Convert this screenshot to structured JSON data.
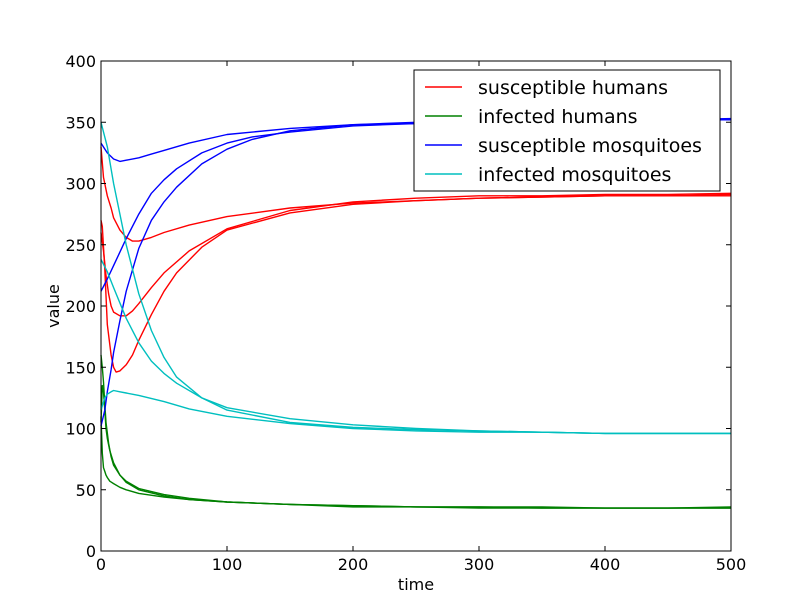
{
  "chart_data": {
    "type": "line",
    "title": "",
    "xlabel": "time",
    "ylabel": "value",
    "xlim": [
      0,
      500
    ],
    "ylim": [
      0,
      400
    ],
    "x_ticks": [
      0,
      100,
      200,
      300,
      400,
      500
    ],
    "y_ticks": [
      0,
      50,
      100,
      150,
      200,
      250,
      300,
      350,
      400
    ],
    "grid": false,
    "legend_position": "top-right",
    "legend": [
      {
        "label": "susceptible humans",
        "color": "#ff0000"
      },
      {
        "label": "infected humans",
        "color": "#008000"
      },
      {
        "label": "susceptible mosquitoes",
        "color": "#0000ff"
      },
      {
        "label": "infected mosquitoes",
        "color": "#00bfbf"
      }
    ],
    "series": [
      {
        "group": "susceptible humans",
        "color": "#ff0000",
        "x": [
          0,
          2,
          5,
          8,
          10,
          15,
          20,
          25,
          30,
          40,
          50,
          70,
          100,
          150,
          200,
          250,
          300,
          350,
          400,
          450,
          500
        ],
        "y": [
          330,
          305,
          290,
          280,
          272,
          262,
          256,
          253,
          253,
          256,
          260,
          266,
          273,
          280,
          284,
          286,
          288,
          289,
          290,
          290,
          290
        ]
      },
      {
        "group": "susceptible humans",
        "color": "#ff0000",
        "x": [
          0,
          2,
          4,
          6,
          8,
          10,
          15,
          20,
          25,
          30,
          40,
          50,
          70,
          100,
          150,
          200,
          250,
          300,
          350,
          400,
          450,
          500
        ],
        "y": [
          260,
          245,
          225,
          210,
          200,
          195,
          192,
          192,
          196,
          202,
          215,
          227,
          245,
          263,
          278,
          285,
          288,
          290,
          290,
          291,
          291,
          292
        ]
      },
      {
        "group": "susceptible humans",
        "color": "#ff0000",
        "x": [
          0,
          1,
          3,
          5,
          8,
          10,
          12,
          15,
          20,
          25,
          30,
          40,
          50,
          60,
          80,
          100,
          150,
          200,
          250,
          300,
          350,
          400,
          450,
          500
        ],
        "y": [
          270,
          265,
          230,
          185,
          160,
          150,
          146,
          147,
          152,
          160,
          172,
          193,
          212,
          227,
          248,
          262,
          276,
          283,
          286,
          288,
          289,
          290,
          290,
          291
        ]
      },
      {
        "group": "infected humans",
        "color": "#008000",
        "x": [
          0,
          1,
          2,
          3,
          4,
          5,
          7,
          10,
          15,
          20,
          30,
          50,
          70,
          100,
          150,
          200,
          250,
          300,
          350,
          400,
          450,
          500
        ],
        "y": [
          105,
          135,
          130,
          115,
          100,
          92,
          82,
          72,
          62,
          56,
          50,
          45,
          42,
          40,
          38,
          37,
          36,
          36,
          36,
          35,
          35,
          35
        ]
      },
      {
        "group": "infected humans",
        "color": "#008000",
        "x": [
          0,
          1,
          2,
          3,
          4,
          6,
          8,
          10,
          15,
          20,
          30,
          50,
          70,
          100,
          150,
          200,
          250,
          300,
          350,
          400,
          450,
          500
        ],
        "y": [
          160,
          150,
          138,
          120,
          105,
          88,
          77,
          70,
          62,
          57,
          51,
          46,
          43,
          40,
          38,
          37,
          36,
          35,
          35,
          35,
          35,
          35
        ]
      },
      {
        "group": "infected humans",
        "color": "#008000",
        "x": [
          0,
          1,
          2,
          3,
          4,
          5,
          7,
          10,
          15,
          20,
          30,
          50,
          70,
          100,
          150,
          200,
          250,
          300,
          350,
          400,
          450,
          500
        ],
        "y": [
          110,
          80,
          68,
          65,
          62,
          60,
          57,
          55,
          52,
          50,
          47,
          44,
          42,
          40,
          38,
          36,
          36,
          36,
          35,
          35,
          35,
          36
        ]
      },
      {
        "group": "susceptible mosquitoes",
        "color": "#0000ff",
        "x": [
          0,
          5,
          10,
          15,
          20,
          30,
          40,
          50,
          70,
          100,
          150,
          200,
          250,
          300,
          350,
          400,
          450,
          500
        ],
        "y": [
          333,
          325,
          320,
          318,
          319,
          321,
          324,
          327,
          333,
          340,
          345,
          348,
          349,
          350,
          351,
          352,
          352,
          353
        ]
      },
      {
        "group": "susceptible mosquitoes",
        "color": "#0000ff",
        "x": [
          0,
          5,
          10,
          20,
          30,
          40,
          50,
          60,
          80,
          100,
          120,
          150,
          200,
          250,
          300,
          350,
          400,
          450,
          500
        ],
        "y": [
          212,
          222,
          233,
          255,
          275,
          292,
          303,
          312,
          325,
          333,
          338,
          342,
          347,
          349,
          350,
          351,
          352,
          352,
          352
        ]
      },
      {
        "group": "susceptible mosquitoes",
        "color": "#0000ff",
        "x": [
          0,
          3,
          5,
          8,
          10,
          15,
          20,
          30,
          40,
          50,
          60,
          80,
          100,
          120,
          150,
          200,
          250,
          300,
          350,
          400,
          450,
          500
        ],
        "y": [
          102,
          115,
          130,
          148,
          162,
          188,
          212,
          247,
          270,
          285,
          297,
          316,
          328,
          336,
          343,
          348,
          350,
          350,
          351,
          352,
          352,
          352
        ]
      },
      {
        "group": "infected mosquitoes",
        "color": "#00bfbf",
        "x": [
          0,
          5,
          10,
          15,
          20,
          30,
          40,
          50,
          60,
          80,
          100,
          150,
          200,
          250,
          300,
          350,
          400,
          450,
          500
        ],
        "y": [
          350,
          330,
          300,
          275,
          250,
          210,
          180,
          158,
          142,
          125,
          115,
          105,
          101,
          99,
          98,
          97,
          96,
          96,
          96
        ]
      },
      {
        "group": "infected mosquitoes",
        "color": "#00bfbf",
        "x": [
          0,
          5,
          10,
          20,
          30,
          40,
          50,
          60,
          80,
          100,
          150,
          200,
          250,
          300,
          350,
          400,
          450,
          500
        ],
        "y": [
          238,
          228,
          215,
          190,
          170,
          155,
          145,
          137,
          125,
          117,
          108,
          103,
          100,
          98,
          97,
          96,
          96,
          96
        ]
      },
      {
        "group": "infected mosquitoes",
        "color": "#00bfbf",
        "x": [
          0,
          3,
          5,
          8,
          10,
          15,
          20,
          30,
          50,
          70,
          100,
          150,
          200,
          250,
          300,
          350,
          400,
          450,
          500
        ],
        "y": [
          115,
          125,
          128,
          130,
          131,
          130,
          129,
          127,
          122,
          116,
          110,
          104,
          100,
          98,
          97,
          97,
          96,
          96,
          96
        ]
      }
    ]
  }
}
